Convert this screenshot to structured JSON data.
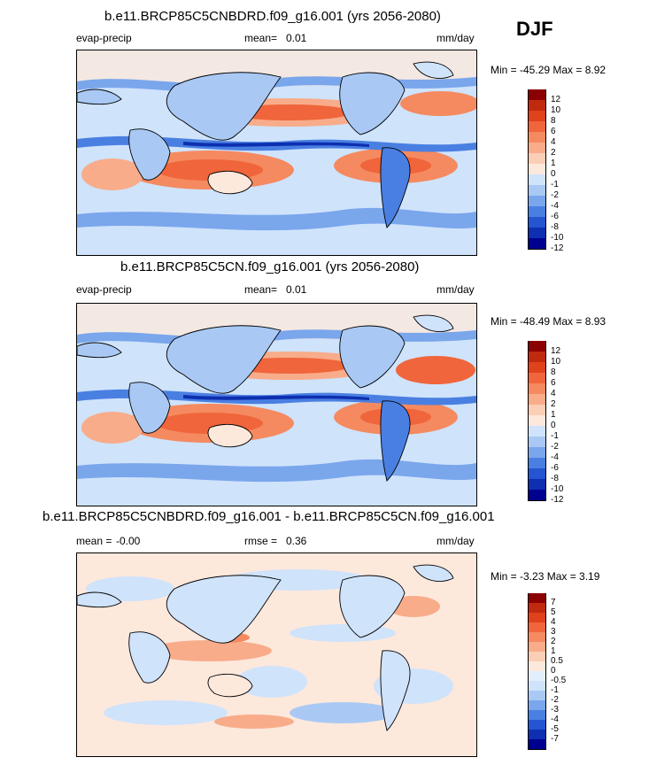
{
  "season": "DJF",
  "panels": [
    {
      "title": "b.e11.BRCP85C5CNBDRD.f09_g16.001 (yrs 2056-2080)",
      "variable": "evap-precip",
      "stat_label": "mean=",
      "stat_value": "0.01",
      "units": "mm/day",
      "minmax": "Min = -45.29 Max =   8.92",
      "colorbar_labels": [
        "12",
        "10",
        "8",
        "6",
        "4",
        "2",
        "1",
        "0",
        "-1",
        "-2",
        "-4",
        "-6",
        "-8",
        "-10",
        "-12"
      ]
    },
    {
      "title": "b.e11.BRCP85C5CN.f09_g16.001 (yrs 2056-2080)",
      "variable": "evap-precip",
      "stat_label": "mean=",
      "stat_value": "0.01",
      "units": "mm/day",
      "minmax": "Min = -48.49 Max =   8.93",
      "colorbar_labels": [
        "12",
        "10",
        "8",
        "6",
        "4",
        "2",
        "1",
        "0",
        "-1",
        "-2",
        "-4",
        "-6",
        "-8",
        "-10",
        "-12"
      ]
    },
    {
      "title": "b.e11.BRCP85C5CNBDRD.f09_g16.001 - b.e11.BRCP85C5CN.f09_g16.001",
      "mean_label": "mean =",
      "mean_value": "-0.00",
      "rmse_label": "rmse =",
      "rmse_value": "0.36",
      "units": "mm/day",
      "minmax": "Min =  -3.23 Max =   3.19",
      "colorbar_labels": [
        "7",
        "5",
        "4",
        "3",
        "2",
        "1",
        "0.5",
        "0",
        "-0.5",
        "-1",
        "-2",
        "-3",
        "-4",
        "-5",
        "-7"
      ]
    }
  ],
  "colors": {
    "abs_scale": [
      "#8b0000",
      "#c02a0f",
      "#e0421c",
      "#f0653b",
      "#f58a60",
      "#f8ac8a",
      "#fbceb6",
      "#fde8dc",
      "#cfe3fb",
      "#a9c9f4",
      "#7aa6ec",
      "#4a7fe2",
      "#2555d0",
      "#0d2fb0",
      "#000090"
    ],
    "diff_scale": [
      "#8b0000",
      "#c02a0f",
      "#e0421c",
      "#f0653b",
      "#f58a60",
      "#f8ac8a",
      "#fbceb6",
      "#fde8dc",
      "#e2eefc",
      "#cfe3fb",
      "#a9c9f4",
      "#7aa6ec",
      "#4a7fe2",
      "#2555d0",
      "#0d2fb0",
      "#000090"
    ]
  },
  "chart_data": [
    {
      "type": "heatmap",
      "title": "b.e11.BRCP85C5CNBDRD.f09_g16.001 (yrs 2056-2080)",
      "variable": "evap-precip",
      "units": "mm/day",
      "mean": 0.01,
      "min": -45.29,
      "max": 8.92,
      "levels": [
        -12,
        -10,
        -8,
        -6,
        -4,
        -2,
        -1,
        0,
        1,
        2,
        4,
        6,
        8,
        10,
        12
      ]
    },
    {
      "type": "heatmap",
      "title": "b.e11.BRCP85C5CN.f09_g16.001 (yrs 2056-2080)",
      "variable": "evap-precip",
      "units": "mm/day",
      "mean": 0.01,
      "min": -48.49,
      "max": 8.93,
      "levels": [
        -12,
        -10,
        -8,
        -6,
        -4,
        -2,
        -1,
        0,
        1,
        2,
        4,
        6,
        8,
        10,
        12
      ]
    },
    {
      "type": "heatmap",
      "title": "b.e11.BRCP85C5CNBDRD.f09_g16.001 - b.e11.BRCP85C5CN.f09_g16.001",
      "units": "mm/day",
      "mean": -0.0,
      "rmse": 0.36,
      "min": -3.23,
      "max": 3.19,
      "levels": [
        -7,
        -5,
        -4,
        -3,
        -2,
        -1,
        -0.5,
        0,
        0.5,
        1,
        2,
        3,
        4,
        5,
        7
      ]
    }
  ]
}
